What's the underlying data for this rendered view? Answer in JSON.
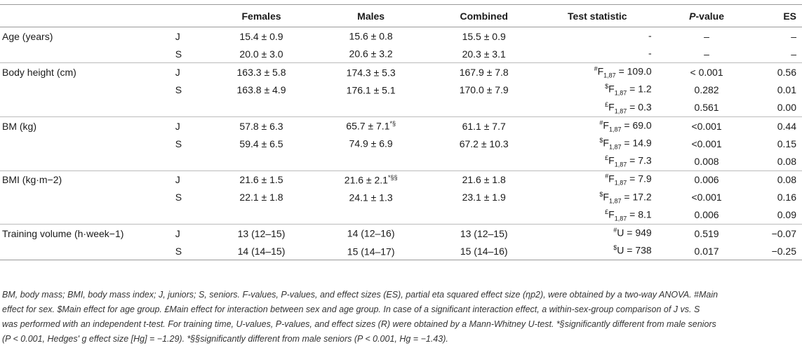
{
  "header": {
    "variable": "",
    "group": "",
    "females": "Females",
    "males": "Males",
    "combined": "Combined",
    "test_statistic": "Test statistic",
    "p_value_italic": "P",
    "p_value_rest": "-value",
    "es": "ES"
  },
  "rows": [
    {
      "var": "Age (years)",
      "grp": "J",
      "f": "15.4 ± 0.9",
      "m": "15.6 ± 0.8",
      "m_sup": "",
      "c": "15.5 ± 0.9",
      "t_sup": "",
      "t_main": "-",
      "t_sub": "",
      "t_val": "",
      "p": "–",
      "es": "–"
    },
    {
      "var": "",
      "grp": "S",
      "f": "20.0 ± 3.0",
      "m": "20.6 ± 3.2",
      "m_sup": "",
      "c": "20.3 ± 3.1",
      "t_sup": "",
      "t_main": "-",
      "t_sub": "",
      "t_val": "",
      "p": "–",
      "es": "–"
    },
    {
      "var": "Body height (cm)",
      "grp": "J",
      "f": "163.3 ± 5.8",
      "m": "174.3 ± 5.3",
      "m_sup": "",
      "c": "167.9 ± 7.8",
      "t_sup": "#",
      "t_main": "F",
      "t_sub": "1,87",
      "t_val": " = 109.0",
      "p": "< 0.001",
      "es": "0.56"
    },
    {
      "var": "",
      "grp": "S",
      "f": "163.8 ± 4.9",
      "m": "176.1 ± 5.1",
      "m_sup": "",
      "c": "170.0 ± 7.9",
      "t_sup": "$",
      "t_main": "F",
      "t_sub": "1,87",
      "t_val": " = 1.2",
      "p": "0.282",
      "es": "0.01"
    },
    {
      "var": "",
      "grp": "",
      "f": "",
      "m": "",
      "m_sup": "",
      "c": "",
      "t_sup": "£",
      "t_main": "F",
      "t_sub": "1,87",
      "t_val": " = 0.3",
      "p": "0.561",
      "es": "0.00"
    },
    {
      "var": "BM (kg)",
      "grp": "J",
      "f": "57.8 ± 6.3",
      "m": "65.7 ± 7.1",
      "m_sup": "*§",
      "c": "61.1 ± 7.7",
      "t_sup": "#",
      "t_main": "F",
      "t_sub": "1,87",
      "t_val": " = 69.0",
      "p": "<0.001",
      "es": "0.44"
    },
    {
      "var": "",
      "grp": "S",
      "f": "59.4 ± 6.5",
      "m": "74.9 ± 6.9",
      "m_sup": "",
      "c": "67.2 ± 10.3",
      "t_sup": "$",
      "t_main": "F",
      "t_sub": "1,87",
      "t_val": " = 14.9",
      "p": "<0.001",
      "es": "0.15"
    },
    {
      "var": "",
      "grp": "",
      "f": "",
      "m": "",
      "m_sup": "",
      "c": "",
      "t_sup": "£",
      "t_main": "F",
      "t_sub": "1,87",
      "t_val": " = 7.3",
      "p": "0.008",
      "es": "0.08"
    },
    {
      "var": "BMI (kg·m−2)",
      "grp": "J",
      "f": "21.6 ± 1.5",
      "m": "21.6 ± 2.1",
      "m_sup": "*§§",
      "c": "21.6 ± 1.8",
      "t_sup": "#",
      "t_main": "F",
      "t_sub": "1,87",
      "t_val": " = 7.9",
      "p": "0.006",
      "es": "0.08"
    },
    {
      "var": "",
      "grp": "S",
      "f": "22.1 ± 1.8",
      "m": "24.1 ± 1.3",
      "m_sup": "",
      "c": "23.1 ± 1.9",
      "t_sup": "$",
      "t_main": "F",
      "t_sub": "1,87",
      "t_val": " = 17.2",
      "p": "<0.001",
      "es": "0.16"
    },
    {
      "var": "",
      "grp": "",
      "f": "",
      "m": "",
      "m_sup": "",
      "c": "",
      "t_sup": "£",
      "t_main": "F",
      "t_sub": "1,87",
      "t_val": " = 8.1",
      "p": "0.006",
      "es": "0.09"
    },
    {
      "var": "Training volume (h·week−1)",
      "grp": "J",
      "f": "13 (12–15)",
      "m": "14 (12–16)",
      "m_sup": "",
      "c": "13 (12–15)",
      "t_sup": "#",
      "t_main": "U = 949",
      "t_sub": "",
      "t_val": "",
      "p": "0.519",
      "es": "−0.07"
    },
    {
      "var": "",
      "grp": "S",
      "f": "14 (14–15)",
      "m": "15 (14–17)",
      "m_sup": "",
      "c": "15 (14–16)",
      "t_sup": "$",
      "t_main": "U = 738",
      "t_sub": "",
      "t_val": "",
      "p": "0.017",
      "es": "−0.25"
    }
  ],
  "footnote": {
    "line1": "BM, body mass; BMI, body mass index; J, juniors; S, seniors. F-values, P-values, and effect sizes (ES), partial eta squared effect size (ηp2), were obtained by a two-way ANOVA. #Main",
    "line2": "effect for sex. $Main effect for age group. £Main effect for interaction between sex and age group. In case of a significant interaction effect, a within-sex-group comparison of J vs. S",
    "line3": "was performed with an independent t-test. For training time, U-values, P-values, and effect sizes (R) were obtained by a Mann-Whitney U-test. *§significantly different from male seniors",
    "line4": "(P < 0.001, Hedges' g effect size [Hg] = −1.29). *§§significantly different from male seniors (P < 0.001, Hg = −1.43)."
  }
}
